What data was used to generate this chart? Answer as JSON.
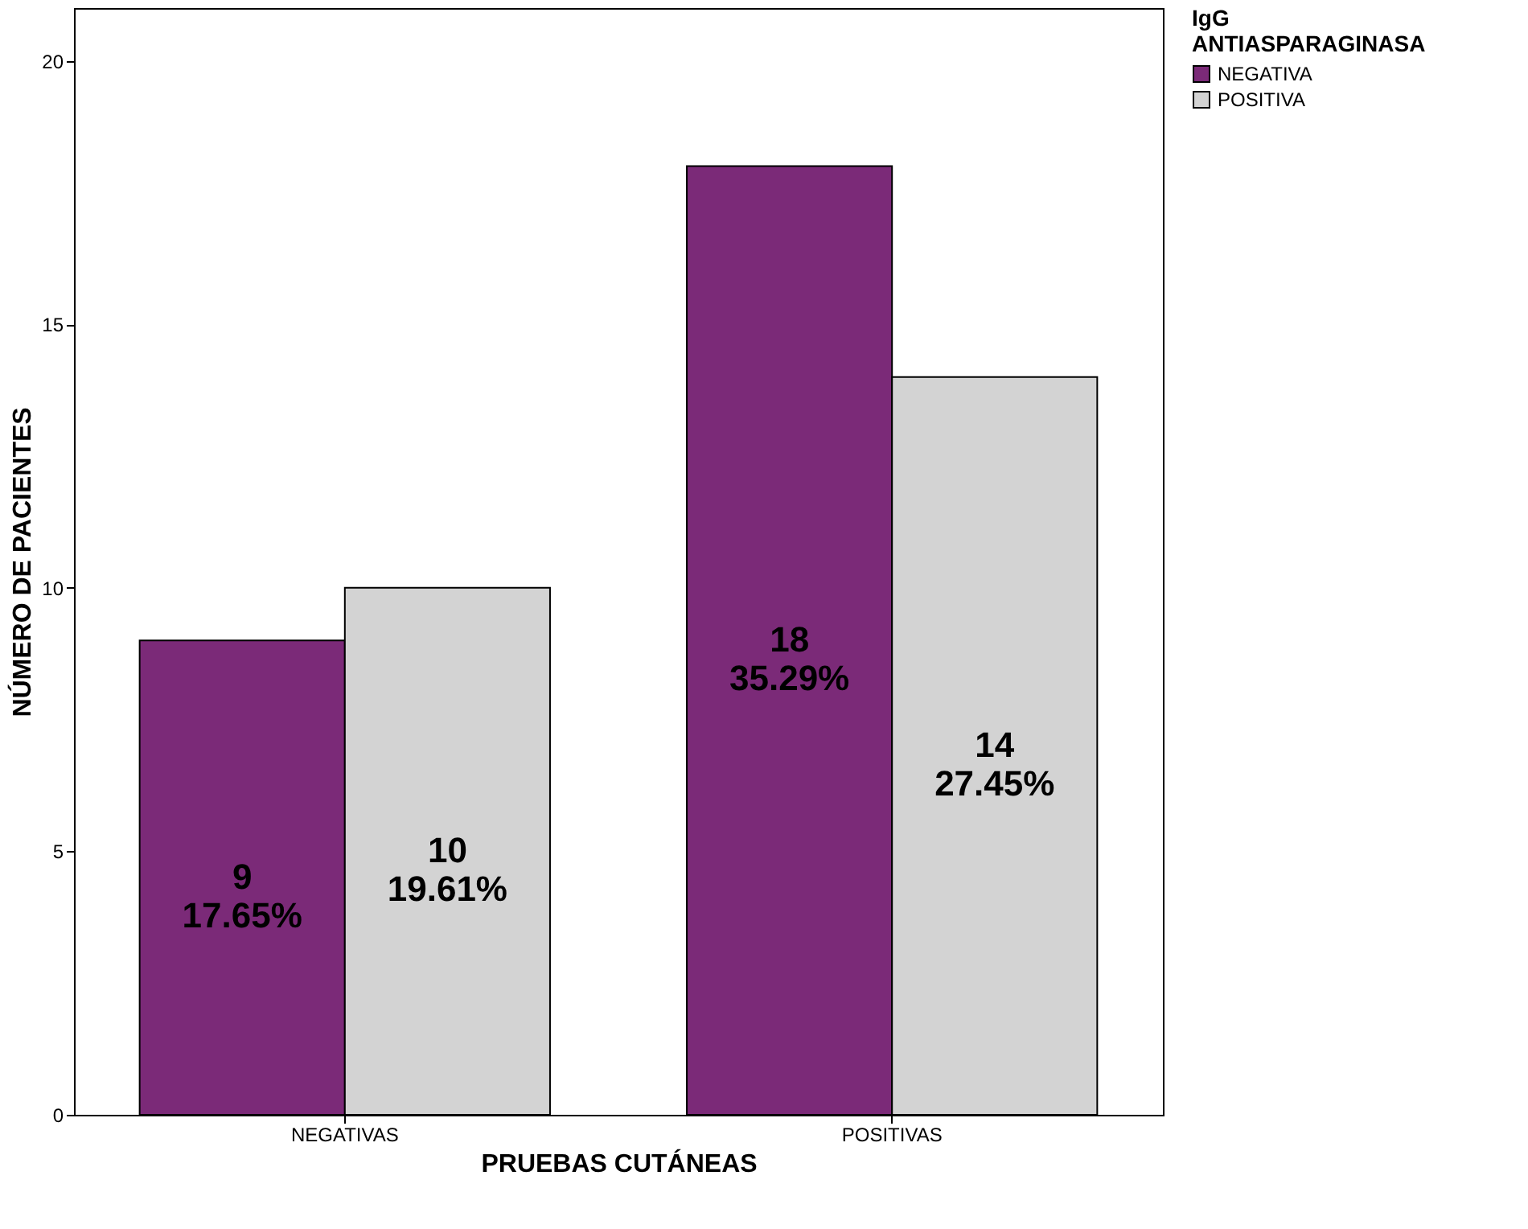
{
  "chart_data": {
    "type": "bar",
    "xlabel": "PRUEBAS CUTÁNEAS",
    "ylabel": "NÚMERO DE PACIENTES",
    "legend_title": "IgG\nANTIASPARAGINASA",
    "categories": [
      "NEGATIVAS",
      "POSITIVAS"
    ],
    "series": [
      {
        "name": "NEGATIVA",
        "color": "#7b2a78",
        "values": [
          9,
          18
        ],
        "value_labels": [
          "9\n17.65%",
          "18\n35.29%"
        ]
      },
      {
        "name": "POSITIVA",
        "color": "#d3d3d3",
        "values": [
          10,
          14
        ],
        "value_labels": [
          "10\n19.61%",
          "14\n27.45%"
        ]
      }
    ],
    "ylim": [
      0,
      21
    ],
    "yticks": [
      0,
      5,
      10,
      15,
      20
    ],
    "grid": false,
    "legend": "top right"
  }
}
